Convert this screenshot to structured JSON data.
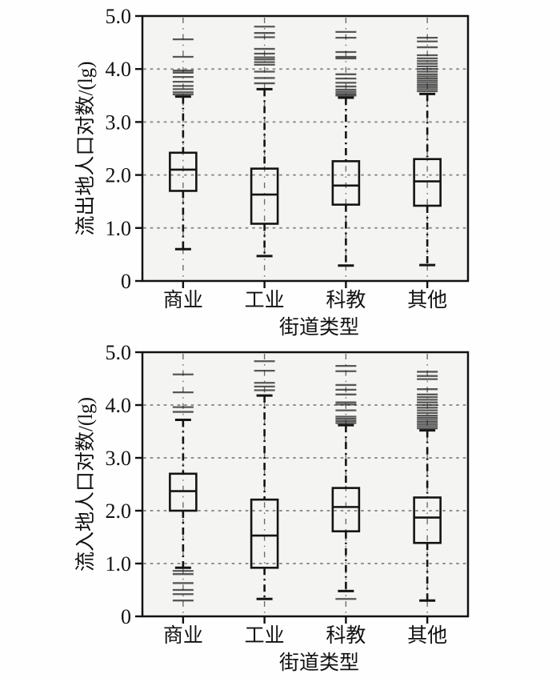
{
  "figure": {
    "description": "Two stacked box-and-whisker plots of population logarithm by street type",
    "x_axis_title": "街道类型",
    "categories": [
      "商业",
      "工业",
      "科教",
      "其他"
    ]
  },
  "style": {
    "box_color": "#141414",
    "grid_color": "#8f8f8f",
    "plot_bg": "#f4f4f2",
    "outlier_color": "#1c1c1c",
    "center_line_color": "#6e6e6e"
  },
  "chart_data": [
    {
      "type": "boxplot",
      "title": "",
      "xlabel": "街道类型",
      "ylabel": "流出地人口对数/(lg)",
      "categories": [
        "商业",
        "工业",
        "科教",
        "其他"
      ],
      "ylim": [
        0,
        5
      ],
      "yticks": [
        0,
        1,
        2,
        3,
        4,
        5
      ],
      "ytick_labels": [
        "0",
        "1.0",
        "2.0",
        "3.0",
        "4.0",
        "5.0"
      ],
      "grid": "horizontal-dotted",
      "legend": "none",
      "boxes": [
        {
          "category": "商业",
          "whisker_low": 0.6,
          "q1": 1.7,
          "median": 2.1,
          "q3": 2.42,
          "whisker_high": 3.48,
          "outliers_high": [
            3.52,
            3.56,
            3.62,
            3.68,
            3.76,
            3.85,
            3.93,
            3.97,
            4.23,
            4.56
          ],
          "outliers_low": []
        },
        {
          "category": "工业",
          "whisker_low": 0.47,
          "q1": 1.08,
          "median": 1.63,
          "q3": 2.12,
          "whisker_high": 3.62,
          "outliers_high": [
            3.73,
            3.83,
            3.95,
            4.08,
            4.13,
            4.18,
            4.22,
            4.29,
            4.38,
            4.6,
            4.68,
            4.8
          ],
          "outliers_low": []
        },
        {
          "category": "科教",
          "whisker_low": 0.29,
          "q1": 1.44,
          "median": 1.8,
          "q3": 2.26,
          "whisker_high": 3.46,
          "outliers_high": [
            3.5,
            3.53,
            3.57,
            3.61,
            3.67,
            3.74,
            3.82,
            3.9,
            4.2,
            4.23,
            4.32,
            4.59,
            4.7
          ],
          "outliers_low": []
        },
        {
          "category": "其他",
          "whisker_low": 0.3,
          "q1": 1.42,
          "median": 1.88,
          "q3": 2.3,
          "whisker_high": 3.53,
          "outliers_high": [
            3.58,
            3.62,
            3.66,
            3.7,
            3.74,
            3.78,
            3.82,
            3.86,
            3.9,
            3.95,
            4.0,
            4.05,
            4.1,
            4.15,
            4.2,
            4.26,
            4.41,
            4.52,
            4.59
          ],
          "outliers_low": []
        }
      ]
    },
    {
      "type": "boxplot",
      "title": "",
      "xlabel": "街道类型",
      "ylabel": "流入地人口对数/(lg)",
      "categories": [
        "商业",
        "工业",
        "科教",
        "其他"
      ],
      "ylim": [
        0,
        5
      ],
      "yticks": [
        0,
        1,
        2,
        3,
        4,
        5
      ],
      "ytick_labels": [
        "0",
        "1.0",
        "2.0",
        "3.0",
        "4.0",
        "5.0"
      ],
      "grid": "horizontal-dotted",
      "legend": "none",
      "boxes": [
        {
          "category": "商业",
          "whisker_low": 0.92,
          "q1": 2.0,
          "median": 2.37,
          "q3": 2.7,
          "whisker_high": 3.72,
          "outliers_high": [
            3.87,
            3.96,
            4.24,
            4.58
          ],
          "outliers_low": [
            0.86,
            0.8,
            0.63,
            0.5,
            0.42,
            0.3
          ]
        },
        {
          "category": "工业",
          "whisker_low": 0.33,
          "q1": 0.92,
          "median": 1.53,
          "q3": 2.21,
          "whisker_high": 4.18,
          "outliers_high": [
            4.28,
            4.35,
            4.42,
            4.65,
            4.83
          ],
          "outliers_low": []
        },
        {
          "category": "科教",
          "whisker_low": 0.48,
          "q1": 1.61,
          "median": 2.07,
          "q3": 2.43,
          "whisker_high": 3.62,
          "outliers_high": [
            3.66,
            3.7,
            3.74,
            3.78,
            3.9,
            4.01,
            4.05,
            4.2,
            4.29,
            4.38,
            4.64,
            4.74
          ],
          "outliers_low": [
            0.33
          ]
        },
        {
          "category": "其他",
          "whisker_low": 0.3,
          "q1": 1.39,
          "median": 1.87,
          "q3": 2.25,
          "whisker_high": 3.52,
          "outliers_high": [
            3.56,
            3.6,
            3.64,
            3.68,
            3.72,
            3.76,
            3.8,
            3.85,
            3.9,
            3.95,
            4.0,
            4.05,
            4.1,
            4.15,
            4.2,
            4.3,
            4.49,
            4.55,
            4.63
          ],
          "outliers_low": []
        }
      ]
    }
  ]
}
